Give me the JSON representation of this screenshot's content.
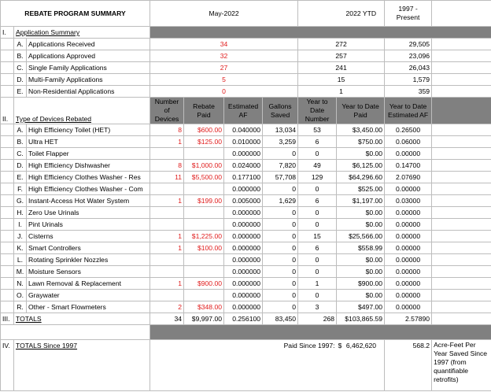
{
  "header": {
    "title": "REBATE PROGRAM SUMMARY",
    "col_month": "May-2022",
    "col_ytd": "2022 YTD",
    "col_present": "1997 - Present"
  },
  "application_summary": {
    "roman": "I.",
    "title": "Application Summary",
    "rows": [
      {
        "letter": "A.",
        "label": "Applications Received",
        "month": "34",
        "ytd": "272",
        "present": "29,505"
      },
      {
        "letter": "B.",
        "label": "Applications Approved",
        "month": "32",
        "ytd": "257",
        "present": "23,096"
      },
      {
        "letter": "C.",
        "label": "Single Family Applications",
        "month": "27",
        "ytd": "241",
        "present": "26,043"
      },
      {
        "letter": "D.",
        "label": "Multi-Family Applications",
        "month": "5",
        "ytd": "15",
        "present": "1,579"
      },
      {
        "letter": "E.",
        "label": "Non-Residential Applications",
        "month": "0",
        "ytd": "1",
        "present": "359"
      }
    ]
  },
  "devices": {
    "roman": "II.",
    "title": "Type of Devices Rebated",
    "columns": {
      "num_devices": "Number of Devices",
      "rebate_paid": "Rebate Paid",
      "est_af": "Estimated AF",
      "gallons": "Gallons Saved",
      "ytd_number": "Year to Date Number",
      "ytd_paid": "Year to Date Paid",
      "ytd_af": "Year to Date Estimated AF"
    },
    "rows": [
      {
        "letter": "A.",
        "label": "High Efficiency Toilet (HET)",
        "num": "8",
        "paid": "$600.00",
        "af": "0.040000",
        "gal": "13,034",
        "ytdn": "53",
        "ytdp": "$3,450.00",
        "ytdaf": "0.26500"
      },
      {
        "letter": "B.",
        "label": "Ultra HET",
        "num": "1",
        "paid": "$125.00",
        "af": "0.010000",
        "gal": "3,259",
        "ytdn": "6",
        "ytdp": "$750.00",
        "ytdaf": "0.06000"
      },
      {
        "letter": "C.",
        "label": "Toilet Flapper",
        "num": "",
        "paid": "",
        "af": "0.000000",
        "gal": "0",
        "ytdn": "0",
        "ytdp": "$0.00",
        "ytdaf": "0.00000"
      },
      {
        "letter": "D.",
        "label": "High Efficiency Dishwasher",
        "num": "8",
        "paid": "$1,000.00",
        "af": "0.024000",
        "gal": "7,820",
        "ytdn": "49",
        "ytdp": "$6,125.00",
        "ytdaf": "0.14700"
      },
      {
        "letter": "E.",
        "label": "High Efficiency Clothes Washer - Res",
        "num": "11",
        "paid": "$5,500.00",
        "af": "0.177100",
        "gal": "57,708",
        "ytdn": "129",
        "ytdp": "$64,296.60",
        "ytdaf": "2.07690"
      },
      {
        "letter": "F.",
        "label": "High Efficiency Clothes Washer - Com",
        "num": "",
        "paid": "",
        "af": "0.000000",
        "gal": "0",
        "ytdn": "0",
        "ytdp": "$525.00",
        "ytdaf": "0.00000"
      },
      {
        "letter": "G.",
        "label": "Instant-Access Hot Water System",
        "num": "1",
        "paid": "$199.00",
        "af": "0.005000",
        "gal": "1,629",
        "ytdn": "6",
        "ytdp": "$1,197.00",
        "ytdaf": "0.03000"
      },
      {
        "letter": "H.",
        "label": "Zero Use Urinals",
        "num": "",
        "paid": "",
        "af": "0.000000",
        "gal": "0",
        "ytdn": "0",
        "ytdp": "$0.00",
        "ytdaf": "0.00000"
      },
      {
        "letter": "I.",
        "label": "Pint Urinals",
        "num": "",
        "paid": "",
        "af": "0.000000",
        "gal": "0",
        "ytdn": "0",
        "ytdp": "$0.00",
        "ytdaf": "0.00000"
      },
      {
        "letter": "J.",
        "label": "Cisterns",
        "num": "1",
        "paid": "$1,225.00",
        "af": "0.000000",
        "gal": "0",
        "ytdn": "15",
        "ytdp": "$25,566.00",
        "ytdaf": "0.00000"
      },
      {
        "letter": "K.",
        "label": "Smart Controllers",
        "num": "1",
        "paid": "$100.00",
        "af": "0.000000",
        "gal": "0",
        "ytdn": "6",
        "ytdp": "$558.99",
        "ytdaf": "0.00000"
      },
      {
        "letter": "L.",
        "label": "Rotating Sprinkler Nozzles",
        "num": "",
        "paid": "",
        "af": "0.000000",
        "gal": "0",
        "ytdn": "0",
        "ytdp": "$0.00",
        "ytdaf": "0.00000"
      },
      {
        "letter": "M.",
        "label": "Moisture Sensors",
        "num": "",
        "paid": "",
        "af": "0.000000",
        "gal": "0",
        "ytdn": "0",
        "ytdp": "$0.00",
        "ytdaf": "0.00000"
      },
      {
        "letter": "N.",
        "label": "Lawn Removal & Replacement",
        "num": "1",
        "paid": "$900.00",
        "af": "0.000000",
        "gal": "0",
        "ytdn": "1",
        "ytdp": "$900.00",
        "ytdaf": "0.00000"
      },
      {
        "letter": "O.",
        "label": "Graywater",
        "num": "",
        "paid": "",
        "af": "0.000000",
        "gal": "0",
        "ytdn": "0",
        "ytdp": "$0.00",
        "ytdaf": "0.00000"
      },
      {
        "letter": "R.",
        "label": "Other - Smart Flowmeters",
        "num": "2",
        "paid": "$348.00",
        "af": "0.000000",
        "gal": "0",
        "ytdn": "3",
        "ytdp": "$497.00",
        "ytdaf": "0.00000"
      }
    ]
  },
  "totals": {
    "roman": "III.",
    "label": "TOTALS",
    "num": "34",
    "paid": "$9,997.00",
    "af": "0.256100",
    "gal": "83,450",
    "ytdn": "268",
    "ytdp": "$103,865.59",
    "ytdaf": "2.57890"
  },
  "totals_since": {
    "roman": "IV.",
    "label": "TOTALS Since 1997",
    "paid_label": "Paid Since 1997:",
    "currency": "$",
    "paid_value": "6,462,620",
    "af_value": "568.2",
    "af_note": "Acre-Feet Per Year Saved Since 1997 (from quantifiable retrofits)"
  },
  "colors": {
    "shade": "#808080",
    "red_text": "#e01c1c",
    "grid": "#bdbdbd"
  }
}
